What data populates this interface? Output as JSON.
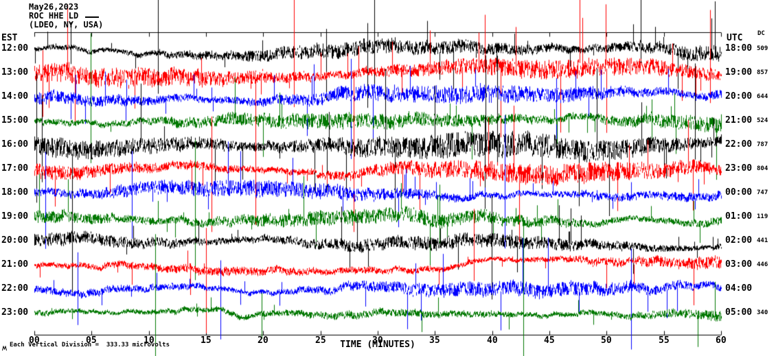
{
  "header": {
    "date": "May26,2023",
    "station": "ROC HHE LD",
    "location": "(LDEO, NY, USA)"
  },
  "axes": {
    "left_label": "EST",
    "right_label": "UTC",
    "dc_label": "DC",
    "x_title": "TIME (MINUTES)",
    "x_ticks": [
      "00",
      "05",
      "10",
      "15",
      "20",
      "25",
      "30",
      "35",
      "40",
      "45",
      "50",
      "55",
      "60"
    ]
  },
  "footer": {
    "note": "Each Vertical Division =  333.33 microvolts"
  },
  "chart_data": {
    "type": "line",
    "title": "Helicorder seismogram - station ROC HHE LD, May 26 2023",
    "x_axis": {
      "label": "TIME (MINUTES)",
      "min": 0,
      "max": 60,
      "tick_interval": 5
    },
    "vertical_division_microvolts": 333.33,
    "trace_colors_cycle": [
      "#000000",
      "#ff0000",
      "#0000ff",
      "#007700"
    ],
    "rows": [
      {
        "est": "12:00",
        "utc": "18:00",
        "dc": "509",
        "color": "#000000",
        "amp": 10,
        "tall": 6
      },
      {
        "est": "13:00",
        "utc": "19:00",
        "dc": "857",
        "color": "#ff0000",
        "amp": 10,
        "tall": 3
      },
      {
        "est": "14:00",
        "utc": "20:00",
        "dc": "644",
        "color": "#0000ff",
        "amp": 9,
        "tall": 2
      },
      {
        "est": "15:00",
        "utc": "21:00",
        "dc": "524",
        "color": "#007700",
        "amp": 9,
        "tall": 2
      },
      {
        "est": "16:00",
        "utc": "22:00",
        "dc": "787",
        "color": "#000000",
        "amp": 13,
        "tall": 6
      },
      {
        "est": "17:00",
        "utc": "23:00",
        "dc": "804",
        "color": "#ff0000",
        "amp": 14,
        "tall": 3
      },
      {
        "est": "18:00",
        "utc": "00:00",
        "dc": "747",
        "color": "#0000ff",
        "amp": 10,
        "tall": 3
      },
      {
        "est": "19:00",
        "utc": "01:00",
        "dc": "119",
        "color": "#007700",
        "amp": 8,
        "tall": 2
      },
      {
        "est": "20:00",
        "utc": "02:00",
        "dc": "441",
        "color": "#000000",
        "amp": 7,
        "tall": 2
      },
      {
        "est": "21:00",
        "utc": "03:00",
        "dc": "446",
        "color": "#ff0000",
        "amp": 8,
        "tall": 2
      },
      {
        "est": "22:00",
        "utc": "04:00",
        "dc": "",
        "color": "#0000ff",
        "amp": 9,
        "tall": 3
      },
      {
        "est": "23:00",
        "utc": "05:00",
        "dc": "340",
        "color": "#007700",
        "amp": 7,
        "tall": 3
      }
    ]
  }
}
